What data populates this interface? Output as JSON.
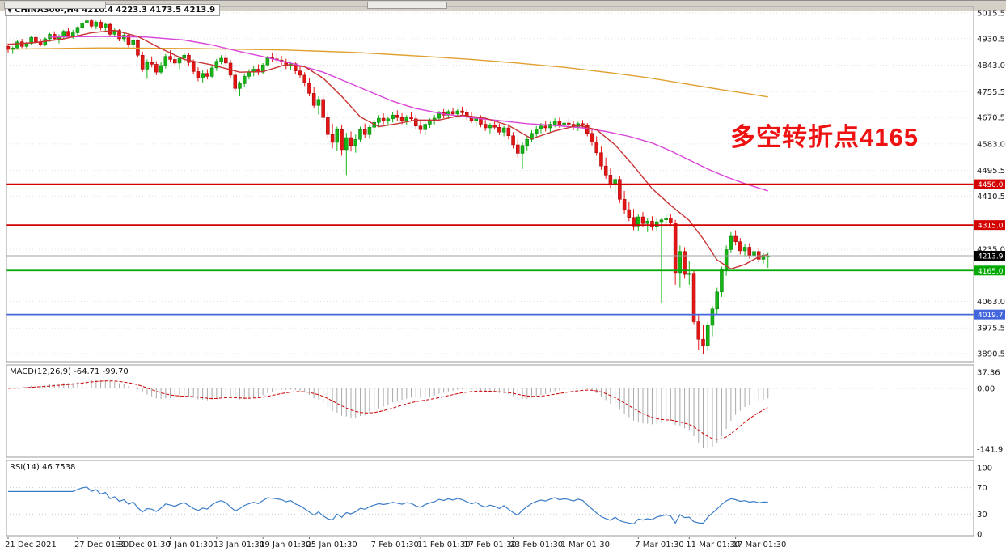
{
  "title": "CHINA300-,H4 4210.4 4223.3 4173.5 4213.9",
  "annotation": {
    "text": "多空转折点4165",
    "color": "#ee1111"
  },
  "chart_data": {
    "type": "candlestick",
    "symbol": "CHINA300-",
    "timeframe": "H4",
    "last_bar": {
      "open": 4210.4,
      "high": 4223.3,
      "low": 4173.5,
      "close": 4213.9
    },
    "up_color": "#14b514",
    "down_color": "#e41515",
    "y_ticks": [
      5015.5,
      4930.5,
      4843.0,
      4755.5,
      4670.5,
      4583.0,
      4495.5,
      4410.5,
      4235.0,
      4063.0,
      3975.5,
      3890.5
    ],
    "x_ticks": [
      [
        0,
        "21 Dec 2021"
      ],
      [
        15,
        "27 Dec 01:30"
      ],
      [
        24,
        "31 Dec 01:30"
      ],
      [
        35,
        "7 Jan 01:30"
      ],
      [
        45,
        "13 Jan 01:30"
      ],
      [
        55,
        "19 Jan 01:30"
      ],
      [
        65,
        "25 Jan 01:30"
      ],
      [
        79,
        "7 Feb 01:30"
      ],
      [
        89,
        "11 Feb 01:30"
      ],
      [
        99,
        "17 Feb 01:30"
      ],
      [
        109,
        "23 Feb 01:30"
      ],
      [
        120,
        "1 Mar 01:30"
      ],
      [
        136,
        "7 Mar 01:30"
      ],
      [
        147,
        "11 Mar 01:30"
      ],
      [
        157,
        "17 Mar 01:30"
      ]
    ],
    "levels": [
      {
        "value": 4450.0,
        "label": "4450.0",
        "color": "#d40000"
      },
      {
        "value": 4315.0,
        "label": "4315.0",
        "color": "#d40000"
      },
      {
        "value": 4165.0,
        "label": "4165.0",
        "color": "#00a800"
      },
      {
        "value": 4019.7,
        "label": "4019.7",
        "color": "#4466dd"
      }
    ],
    "current_price": {
      "value": 4213.9,
      "label": "4213.9",
      "line_color": "#a0a0a0",
      "label_bg": "#000000"
    },
    "candles": [
      [
        4905,
        4915,
        4885,
        4895
      ],
      [
        4895,
        4905,
        4880,
        4900
      ],
      [
        4900,
        4925,
        4895,
        4920
      ],
      [
        4920,
        4930,
        4900,
        4905
      ],
      [
        4905,
        4920,
        4895,
        4915
      ],
      [
        4915,
        4940,
        4910,
        4935
      ],
      [
        4935,
        4945,
        4915,
        4920
      ],
      [
        4920,
        4930,
        4905,
        4910
      ],
      [
        4910,
        4935,
        4905,
        4930
      ],
      [
        4930,
        4950,
        4920,
        4945
      ],
      [
        4945,
        4955,
        4925,
        4930
      ],
      [
        4930,
        4945,
        4915,
        4940
      ],
      [
        4940,
        4960,
        4930,
        4955
      ],
      [
        4955,
        4965,
        4935,
        4940
      ],
      [
        4940,
        4960,
        4930,
        4950
      ],
      [
        4950,
        4972,
        4942,
        4968
      ],
      [
        4968,
        4988,
        4960,
        4982
      ],
      [
        4982,
        4996,
        4974,
        4990
      ],
      [
        4990,
        4994,
        4964,
        4972
      ],
      [
        4972,
        4990,
        4962,
        4985
      ],
      [
        4985,
        4992,
        4958,
        4966
      ],
      [
        4966,
        4984,
        4952,
        4978
      ],
      [
        4978,
        4982,
        4938,
        4945
      ],
      [
        4945,
        4966,
        4936,
        4958
      ],
      [
        4958,
        4962,
        4922,
        4930
      ],
      [
        4930,
        4950,
        4920,
        4942
      ],
      [
        4942,
        4948,
        4902,
        4910
      ],
      [
        4910,
        4932,
        4898,
        4924
      ],
      [
        4924,
        4928,
        4868,
        4876
      ],
      [
        4876,
        4888,
        4820,
        4830
      ],
      [
        4830,
        4862,
        4798,
        4852
      ],
      [
        4852,
        4872,
        4836,
        4846
      ],
      [
        4846,
        4856,
        4810,
        4820
      ],
      [
        4820,
        4852,
        4812,
        4842
      ],
      [
        4842,
        4880,
        4832,
        4872
      ],
      [
        4872,
        4892,
        4852,
        4862
      ],
      [
        4862,
        4876,
        4840,
        4850
      ],
      [
        4850,
        4872,
        4830,
        4866
      ],
      [
        4866,
        4886,
        4856,
        4876
      ],
      [
        4876,
        4882,
        4842,
        4852
      ],
      [
        4852,
        4862,
        4812,
        4822
      ],
      [
        4822,
        4836,
        4790,
        4800
      ],
      [
        4800,
        4826,
        4786,
        4816
      ],
      [
        4816,
        4830,
        4796,
        4806
      ],
      [
        4806,
        4840,
        4800,
        4834
      ],
      [
        4834,
        4864,
        4824,
        4856
      ],
      [
        4856,
        4876,
        4846,
        4866
      ],
      [
        4866,
        4880,
        4840,
        4850
      ],
      [
        4850,
        4860,
        4800,
        4810
      ],
      [
        4810,
        4820,
        4756,
        4766
      ],
      [
        4766,
        4790,
        4740,
        4782
      ],
      [
        4782,
        4816,
        4772,
        4806
      ],
      [
        4806,
        4830,
        4796,
        4820
      ],
      [
        4820,
        4840,
        4806,
        4830
      ],
      [
        4830,
        4846,
        4810,
        4820
      ],
      [
        4820,
        4850,
        4814,
        4844
      ],
      [
        4844,
        4874,
        4838,
        4868
      ],
      [
        4868,
        4884,
        4854,
        4864
      ],
      [
        4864,
        4880,
        4850,
        4860
      ],
      [
        4860,
        4874,
        4844,
        4854
      ],
      [
        4854,
        4864,
        4830,
        4840
      ],
      [
        4840,
        4856,
        4826,
        4848
      ],
      [
        4848,
        4852,
        4814,
        4824
      ],
      [
        4824,
        4840,
        4800,
        4810
      ],
      [
        4810,
        4820,
        4774,
        4784
      ],
      [
        4784,
        4800,
        4740,
        4750
      ],
      [
        4750,
        4770,
        4700,
        4710
      ],
      [
        4710,
        4740,
        4680,
        4730
      ],
      [
        4730,
        4744,
        4660,
        4670
      ],
      [
        4670,
        4690,
        4600,
        4614
      ],
      [
        4614,
        4650,
        4568,
        4588
      ],
      [
        4588,
        4640,
        4560,
        4630
      ],
      [
        4630,
        4644,
        4544,
        4564
      ],
      [
        4564,
        4620,
        4480,
        4604
      ],
      [
        4604,
        4624,
        4558,
        4578
      ],
      [
        4578,
        4614,
        4554,
        4598
      ],
      [
        4598,
        4640,
        4588,
        4630
      ],
      [
        4630,
        4650,
        4604,
        4614
      ],
      [
        4614,
        4644,
        4600,
        4638
      ],
      [
        4638,
        4664,
        4624,
        4654
      ],
      [
        4654,
        4678,
        4638,
        4668
      ],
      [
        4668,
        4684,
        4648,
        4658
      ],
      [
        4658,
        4674,
        4644,
        4666
      ],
      [
        4666,
        4688,
        4654,
        4678
      ],
      [
        4678,
        4694,
        4658,
        4670
      ],
      [
        4670,
        4684,
        4648,
        4660
      ],
      [
        4660,
        4678,
        4646,
        4672
      ],
      [
        4672,
        4688,
        4658,
        4666
      ],
      [
        4666,
        4678,
        4632,
        4642
      ],
      [
        4642,
        4658,
        4618,
        4630
      ],
      [
        4630,
        4654,
        4612,
        4648
      ],
      [
        4648,
        4668,
        4636,
        4660
      ],
      [
        4660,
        4678,
        4648,
        4668
      ],
      [
        4668,
        4692,
        4658,
        4686
      ],
      [
        4686,
        4698,
        4668,
        4678
      ],
      [
        4678,
        4696,
        4666,
        4690
      ],
      [
        4690,
        4702,
        4676,
        4682
      ],
      [
        4682,
        4698,
        4670,
        4692
      ],
      [
        4692,
        4706,
        4678,
        4686
      ],
      [
        4686,
        4696,
        4662,
        4672
      ],
      [
        4672,
        4688,
        4652,
        4660
      ],
      [
        4660,
        4676,
        4642,
        4668
      ],
      [
        4668,
        4678,
        4638,
        4648
      ],
      [
        4648,
        4662,
        4626,
        4636
      ],
      [
        4636,
        4652,
        4618,
        4646
      ],
      [
        4646,
        4660,
        4630,
        4638
      ],
      [
        4638,
        4650,
        4612,
        4622
      ],
      [
        4622,
        4642,
        4608,
        4636
      ],
      [
        4636,
        4648,
        4598,
        4610
      ],
      [
        4610,
        4622,
        4568,
        4580
      ],
      [
        4580,
        4598,
        4538,
        4552
      ],
      [
        4552,
        4588,
        4500,
        4578
      ],
      [
        4578,
        4608,
        4562,
        4598
      ],
      [
        4598,
        4628,
        4588,
        4618
      ],
      [
        4618,
        4642,
        4602,
        4632
      ],
      [
        4632,
        4652,
        4618,
        4642
      ],
      [
        4642,
        4658,
        4624,
        4636
      ],
      [
        4636,
        4656,
        4622,
        4648
      ],
      [
        4648,
        4668,
        4638,
        4658
      ],
      [
        4658,
        4670,
        4636,
        4646
      ],
      [
        4646,
        4662,
        4632,
        4652
      ],
      [
        4652,
        4666,
        4638,
        4648
      ],
      [
        4648,
        4660,
        4628,
        4640
      ],
      [
        4640,
        4656,
        4626,
        4650
      ],
      [
        4650,
        4662,
        4636,
        4644
      ],
      [
        4644,
        4652,
        4608,
        4618
      ],
      [
        4618,
        4632,
        4578,
        4590
      ],
      [
        4590,
        4608,
        4544,
        4554
      ],
      [
        4554,
        4574,
        4498,
        4510
      ],
      [
        4510,
        4538,
        4468,
        4480
      ],
      [
        4480,
        4502,
        4438,
        4450
      ],
      [
        4450,
        4476,
        4418,
        4466
      ],
      [
        4466,
        4478,
        4388,
        4400
      ],
      [
        4400,
        4428,
        4352,
        4366
      ],
      [
        4366,
        4392,
        4328,
        4340
      ],
      [
        4340,
        4368,
        4298,
        4312
      ],
      [
        4312,
        4350,
        4296,
        4342
      ],
      [
        4342,
        4358,
        4308,
        4320
      ],
      [
        4320,
        4338,
        4292,
        4328
      ],
      [
        4328,
        4344,
        4298,
        4310
      ],
      [
        4310,
        4336,
        4294,
        4326
      ],
      [
        4326,
        4340,
        4058,
        4332
      ],
      [
        4332,
        4348,
        4310,
        4338
      ],
      [
        4338,
        4350,
        4312,
        4322
      ],
      [
        4322,
        4332,
        4118,
        4158
      ],
      [
        4158,
        4248,
        4108,
        4228
      ],
      [
        4228,
        4242,
        4138,
        4152
      ],
      [
        4152,
        4198,
        4118,
        4156
      ],
      [
        4156,
        4166,
        3988,
        3996
      ],
      [
        3996,
        4018,
        3904,
        3938
      ],
      [
        3938,
        3984,
        3890.5,
        3918
      ],
      [
        3918,
        3994,
        3898,
        3984
      ],
      [
        3984,
        4048,
        3948,
        4038
      ],
      [
        4038,
        4108,
        4018,
        4094
      ],
      [
        4094,
        4178,
        4078,
        4168
      ],
      [
        4168,
        4248,
        4148,
        4234
      ],
      [
        4234,
        4292,
        4222,
        4278
      ],
      [
        4278,
        4298,
        4248,
        4260
      ],
      [
        4260,
        4272,
        4218,
        4230
      ],
      [
        4230,
        4252,
        4212,
        4242
      ],
      [
        4242,
        4256,
        4204,
        4216
      ],
      [
        4216,
        4238,
        4198,
        4228
      ],
      [
        4228,
        4240,
        4192,
        4202
      ],
      [
        4202,
        4222,
        4188,
        4216
      ],
      [
        4210.4,
        4223.3,
        4173.5,
        4213.9
      ]
    ],
    "overlays": [
      {
        "name": "ma-long",
        "color": "#e0a030",
        "points": [
          [
            0,
            4896
          ],
          [
            20,
            4900
          ],
          [
            40,
            4898
          ],
          [
            60,
            4893
          ],
          [
            75,
            4885
          ],
          [
            90,
            4872
          ],
          [
            100,
            4862
          ],
          [
            110,
            4850
          ],
          [
            120,
            4836
          ],
          [
            130,
            4818
          ],
          [
            138,
            4802
          ],
          [
            146,
            4782
          ],
          [
            154,
            4762
          ],
          [
            160,
            4748
          ],
          [
            164,
            4738
          ]
        ]
      },
      {
        "name": "ma-mid",
        "color": "#d944d9",
        "points": [
          [
            9,
            4936
          ],
          [
            20,
            4938
          ],
          [
            30,
            4936
          ],
          [
            38,
            4926
          ],
          [
            44,
            4910
          ],
          [
            50,
            4888
          ],
          [
            56,
            4868
          ],
          [
            62,
            4846
          ],
          [
            68,
            4820
          ],
          [
            73,
            4788
          ],
          [
            78,
            4756
          ],
          [
            83,
            4724
          ],
          [
            88,
            4700
          ],
          [
            94,
            4682
          ],
          [
            100,
            4670
          ],
          [
            106,
            4660
          ],
          [
            112,
            4650
          ],
          [
            118,
            4644
          ],
          [
            124,
            4636
          ],
          [
            129,
            4624
          ],
          [
            134,
            4608
          ],
          [
            139,
            4586
          ],
          [
            143,
            4560
          ],
          [
            147,
            4530
          ],
          [
            151,
            4500
          ],
          [
            155,
            4474
          ],
          [
            159,
            4452
          ],
          [
            164,
            4428
          ]
        ]
      },
      {
        "name": "ma-fast",
        "color": "#c83232",
        "points": [
          [
            0,
            4912
          ],
          [
            6,
            4918
          ],
          [
            12,
            4930
          ],
          [
            18,
            4950
          ],
          [
            23,
            4958
          ],
          [
            28,
            4938
          ],
          [
            33,
            4898
          ],
          [
            38,
            4862
          ],
          [
            44,
            4844
          ],
          [
            50,
            4820
          ],
          [
            55,
            4822
          ],
          [
            60,
            4845
          ],
          [
            64,
            4838
          ],
          [
            68,
            4800
          ],
          [
            72,
            4740
          ],
          [
            76,
            4672
          ],
          [
            80,
            4640
          ],
          [
            84,
            4650
          ],
          [
            88,
            4662
          ],
          [
            93,
            4662
          ],
          [
            98,
            4678
          ],
          [
            103,
            4668
          ],
          [
            108,
            4644
          ],
          [
            113,
            4600
          ],
          [
            118,
            4626
          ],
          [
            123,
            4644
          ],
          [
            127,
            4630
          ],
          [
            131,
            4580
          ],
          [
            135,
            4510
          ],
          [
            139,
            4435
          ],
          [
            143,
            4380
          ],
          [
            147,
            4330
          ],
          [
            150,
            4270
          ],
          [
            153,
            4200
          ],
          [
            156,
            4170
          ],
          [
            159,
            4185
          ],
          [
            162,
            4210
          ],
          [
            164,
            4218
          ]
        ]
      }
    ],
    "indicators": [
      {
        "name": "MACD",
        "title": "MACD(12,26,9) -64.71 -99.70",
        "params": [
          12,
          26,
          9
        ],
        "values": [
          -64.71,
          -99.7
        ],
        "y_ticks": [
          "37.36",
          "0.00",
          "-141.9"
        ],
        "histogram_color": "#a8a8a8",
        "signal_color": "#cc0000"
      },
      {
        "name": "RSI",
        "title": "RSI(14) 46.7538",
        "period": 14,
        "value": 46.7538,
        "y_ticks": [
          "100",
          "70",
          "30",
          "0"
        ],
        "levels": [
          70,
          30
        ],
        "line_color": "#3b7dc8"
      }
    ]
  }
}
